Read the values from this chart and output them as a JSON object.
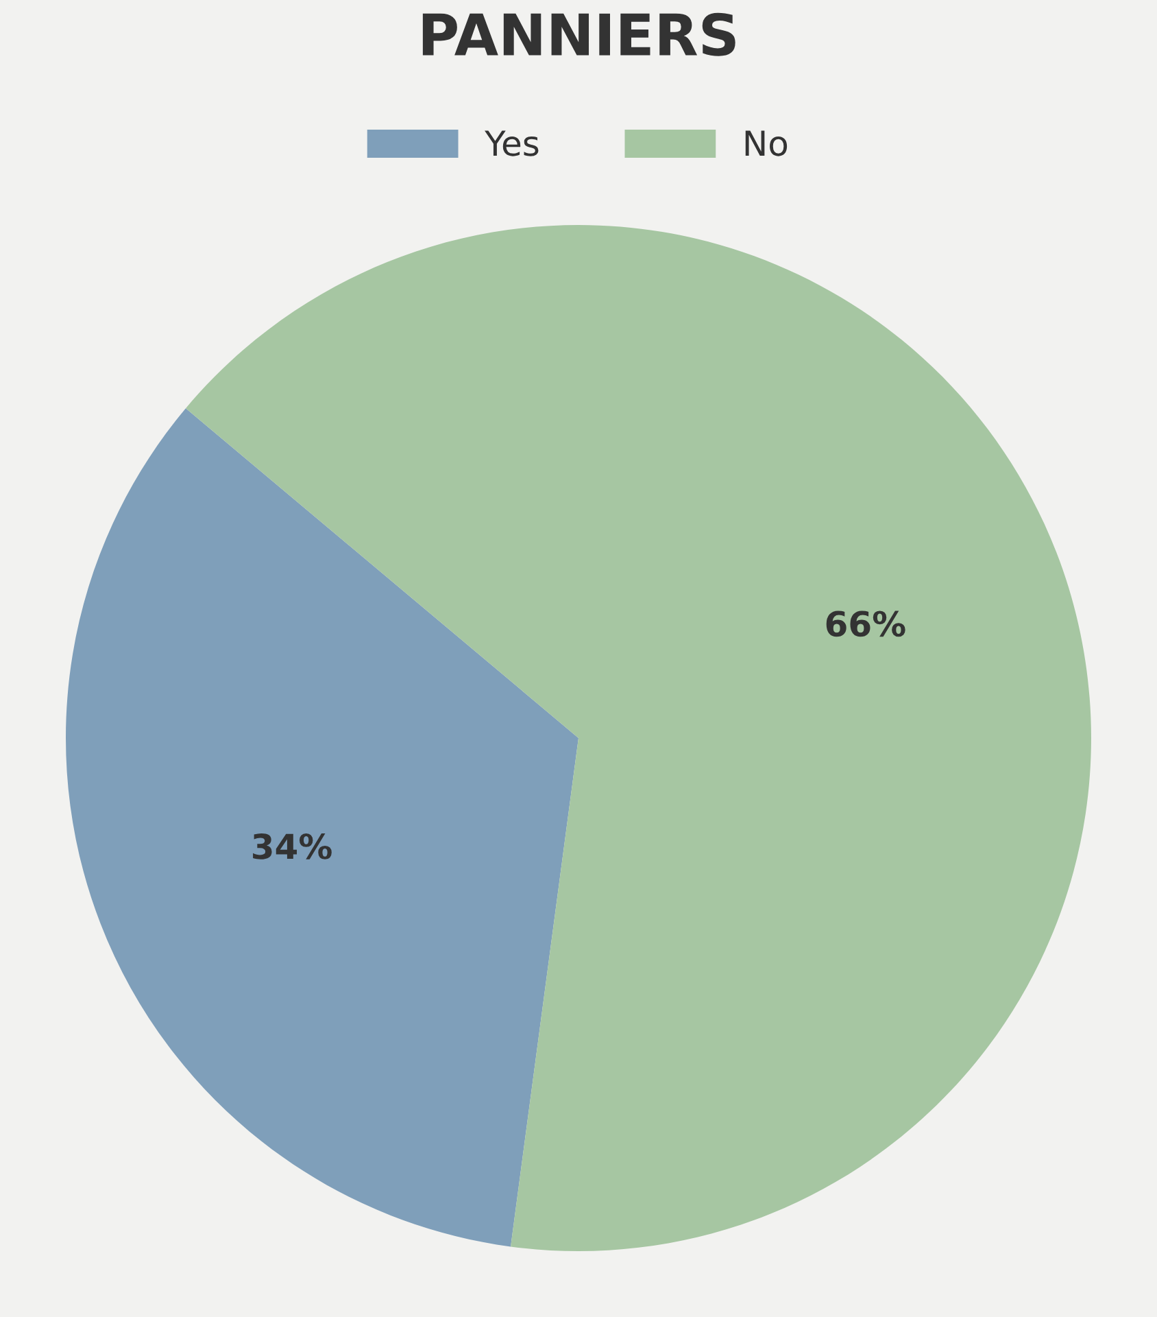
{
  "chart_data": {
    "type": "pie",
    "title": "PANNIERS",
    "categories": [
      "Yes",
      "No"
    ],
    "values": [
      34,
      66
    ],
    "colors": [
      "#7f9fba",
      "#a6c6a2"
    ],
    "value_labels": [
      "34%",
      "66%"
    ],
    "legend": "top"
  }
}
